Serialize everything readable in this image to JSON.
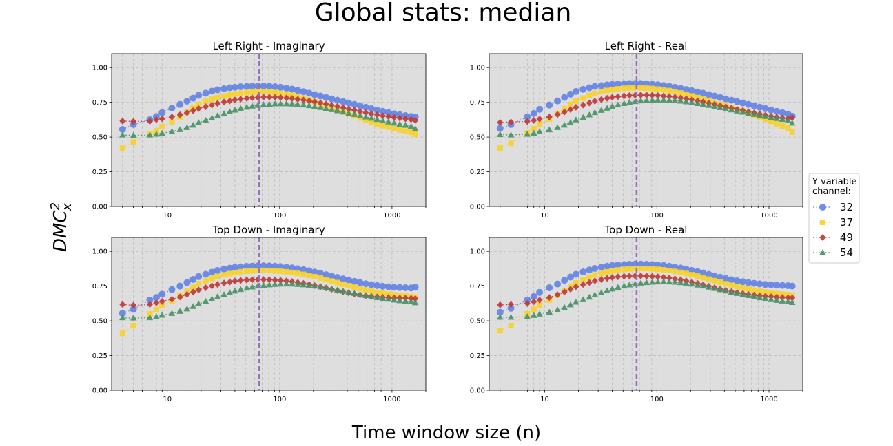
{
  "chart_data": {
    "type": "scatter",
    "title": "Global stats: median",
    "xlabel": "Time window size (n)",
    "ylabel": "DMC",
    "ylabel_sup": "2",
    "ylabel_sub": "x",
    "xscale": "log",
    "xlim": [
      3.2,
      2000
    ],
    "ylim": [
      0,
      1.1
    ],
    "xticks": [
      10,
      100,
      1000
    ],
    "xtick_labels": [
      "10",
      "100",
      "1000"
    ],
    "yticks": [
      0,
      0.25,
      0.5,
      0.75,
      1.0
    ],
    "ytick_labels": [
      "0.00",
      "0.25",
      "0.50",
      "0.75",
      "1.00"
    ],
    "grid": true,
    "vline_x": 66,
    "vline_color": "#8f6fb5",
    "legend": {
      "title_lines": [
        "Y variable",
        "channel:"
      ],
      "placement": "right",
      "entries": [
        "32",
        "37",
        "49",
        "54"
      ]
    },
    "series_styles": [
      {
        "name": "32",
        "color": "#6484e3",
        "marker": "circle"
      },
      {
        "name": "37",
        "color": "#f7d02c",
        "marker": "square"
      },
      {
        "name": "49",
        "color": "#bf3b3b",
        "marker": "diamond"
      },
      {
        "name": "54",
        "color": "#4a9168",
        "marker": "triangle"
      }
    ],
    "x": [
      4,
      5,
      7,
      8,
      9,
      11,
      13,
      15,
      17,
      19,
      22,
      25,
      28,
      32,
      36,
      40,
      45,
      51,
      57,
      64,
      72,
      81,
      91,
      102,
      115,
      129,
      145,
      163,
      183,
      205,
      231,
      259,
      291,
      327,
      367,
      412,
      463,
      520,
      584,
      656,
      737,
      828,
      930,
      1044,
      1173,
      1317,
      1479,
      1610
    ],
    "subplots": [
      {
        "title": "Left Right - Imaginary",
        "series": [
          {
            "name": "32",
            "values": [
              0.555,
              0.59,
              0.625,
              0.648,
              0.676,
              0.708,
              0.735,
              0.758,
              0.78,
              0.8,
              0.816,
              0.83,
              0.84,
              0.848,
              0.855,
              0.858,
              0.862,
              0.864,
              0.866,
              0.867,
              0.867,
              0.866,
              0.862,
              0.858,
              0.852,
              0.845,
              0.836,
              0.826,
              0.816,
              0.805,
              0.795,
              0.785,
              0.775,
              0.765,
              0.755,
              0.745,
              0.735,
              0.725,
              0.715,
              0.704,
              0.694,
              0.685,
              0.676,
              0.667,
              0.66,
              0.654,
              0.648,
              0.645
            ]
          },
          {
            "name": "37",
            "values": [
              0.42,
              0.465,
              0.52,
              0.545,
              0.575,
              0.61,
              0.645,
              0.678,
              0.71,
              0.735,
              0.757,
              0.772,
              0.785,
              0.795,
              0.804,
              0.81,
              0.816,
              0.82,
              0.823,
              0.825,
              0.826,
              0.824,
              0.82,
              0.815,
              0.808,
              0.8,
              0.79,
              0.78,
              0.767,
              0.754,
              0.74,
              0.726,
              0.712,
              0.697,
              0.682,
              0.667,
              0.652,
              0.637,
              0.622,
              0.607,
              0.594,
              0.582,
              0.571,
              0.561,
              0.551,
              0.543,
              0.535,
              0.52
            ]
          },
          {
            "name": "49",
            "values": [
              0.615,
              0.612,
              0.614,
              0.625,
              0.632,
              0.645,
              0.66,
              0.675,
              0.69,
              0.705,
              0.718,
              0.73,
              0.742,
              0.752,
              0.76,
              0.767,
              0.773,
              0.778,
              0.782,
              0.785,
              0.787,
              0.787,
              0.786,
              0.784,
              0.781,
              0.777,
              0.772,
              0.766,
              0.76,
              0.753,
              0.745,
              0.737,
              0.729,
              0.72,
              0.711,
              0.702,
              0.693,
              0.684,
              0.675,
              0.667,
              0.66,
              0.653,
              0.647,
              0.641,
              0.636,
              0.631,
              0.627,
              0.62
            ]
          },
          {
            "name": "54",
            "values": [
              0.515,
              0.512,
              0.515,
              0.52,
              0.528,
              0.54,
              0.553,
              0.568,
              0.585,
              0.603,
              0.62,
              0.637,
              0.653,
              0.668,
              0.682,
              0.694,
              0.705,
              0.714,
              0.722,
              0.728,
              0.733,
              0.736,
              0.738,
              0.739,
              0.739,
              0.737,
              0.734,
              0.73,
              0.725,
              0.719,
              0.712,
              0.705,
              0.697,
              0.689,
              0.68,
              0.671,
              0.662,
              0.653,
              0.644,
              0.635,
              0.626,
              0.617,
              0.608,
              0.6,
              0.592,
              0.584,
              0.576,
              0.56
            ]
          }
        ]
      },
      {
        "title": "Left Right - Real",
        "series": [
          {
            "name": "32",
            "values": [
              0.562,
              0.59,
              0.645,
              0.67,
              0.7,
              0.73,
              0.76,
              0.785,
              0.808,
              0.828,
              0.843,
              0.855,
              0.864,
              0.87,
              0.875,
              0.879,
              0.882,
              0.884,
              0.885,
              0.885,
              0.885,
              0.883,
              0.88,
              0.876,
              0.871,
              0.865,
              0.858,
              0.85,
              0.842,
              0.833,
              0.824,
              0.815,
              0.805,
              0.795,
              0.785,
              0.775,
              0.765,
              0.755,
              0.745,
              0.735,
              0.725,
              0.715,
              0.705,
              0.695,
              0.685,
              0.675,
              0.665,
              0.65
            ]
          },
          {
            "name": "37",
            "values": [
              0.42,
              0.455,
              0.53,
              0.56,
              0.595,
              0.63,
              0.67,
              0.705,
              0.735,
              0.76,
              0.78,
              0.8,
              0.815,
              0.827,
              0.835,
              0.842,
              0.847,
              0.851,
              0.853,
              0.854,
              0.854,
              0.852,
              0.849,
              0.845,
              0.84,
              0.834,
              0.826,
              0.817,
              0.807,
              0.796,
              0.784,
              0.772,
              0.76,
              0.748,
              0.736,
              0.724,
              0.712,
              0.7,
              0.687,
              0.673,
              0.658,
              0.643,
              0.628,
              0.612,
              0.596,
              0.58,
              0.565,
              0.535
            ]
          },
          {
            "name": "49",
            "values": [
              0.605,
              0.608,
              0.612,
              0.62,
              0.63,
              0.645,
              0.662,
              0.68,
              0.698,
              0.714,
              0.73,
              0.745,
              0.758,
              0.77,
              0.779,
              0.786,
              0.791,
              0.796,
              0.799,
              0.801,
              0.802,
              0.802,
              0.801,
              0.799,
              0.796,
              0.792,
              0.787,
              0.781,
              0.775,
              0.768,
              0.76,
              0.752,
              0.744,
              0.735,
              0.726,
              0.717,
              0.708,
              0.699,
              0.69,
              0.681,
              0.673,
              0.665,
              0.657,
              0.65,
              0.643,
              0.637,
              0.631,
              0.64
            ]
          },
          {
            "name": "54",
            "values": [
              0.518,
              0.515,
              0.52,
              0.528,
              0.538,
              0.552,
              0.568,
              0.585,
              0.604,
              0.623,
              0.641,
              0.659,
              0.676,
              0.692,
              0.707,
              0.72,
              0.731,
              0.741,
              0.749,
              0.755,
              0.76,
              0.763,
              0.765,
              0.766,
              0.766,
              0.765,
              0.762,
              0.758,
              0.753,
              0.747,
              0.741,
              0.734,
              0.727,
              0.719,
              0.711,
              0.703,
              0.695,
              0.687,
              0.679,
              0.671,
              0.663,
              0.655,
              0.648,
              0.64,
              0.633,
              0.626,
              0.619,
              0.6
            ]
          }
        ]
      },
      {
        "title": "Top Down - Imaginary",
        "series": [
          {
            "name": "32",
            "values": [
              0.555,
              0.583,
              0.65,
              0.668,
              0.692,
              0.725,
              0.75,
              0.775,
              0.798,
              0.818,
              0.835,
              0.85,
              0.862,
              0.872,
              0.879,
              0.885,
              0.889,
              0.892,
              0.894,
              0.895,
              0.896,
              0.895,
              0.893,
              0.89,
              0.886,
              0.881,
              0.875,
              0.868,
              0.86,
              0.851,
              0.842,
              0.832,
              0.822,
              0.812,
              0.802,
              0.793,
              0.784,
              0.775,
              0.767,
              0.76,
              0.754,
              0.749,
              0.745,
              0.742,
              0.74,
              0.738,
              0.737,
              0.742
            ]
          },
          {
            "name": "37",
            "values": [
              0.41,
              0.465,
              0.55,
              0.58,
              0.61,
              0.645,
              0.68,
              0.712,
              0.742,
              0.767,
              0.788,
              0.806,
              0.82,
              0.831,
              0.84,
              0.847,
              0.853,
              0.857,
              0.86,
              0.862,
              0.863,
              0.862,
              0.86,
              0.857,
              0.853,
              0.848,
              0.842,
              0.835,
              0.827,
              0.818,
              0.808,
              0.797,
              0.786,
              0.775,
              0.764,
              0.753,
              0.742,
              0.732,
              0.722,
              0.713,
              0.705,
              0.698,
              0.692,
              0.687,
              0.682,
              0.678,
              0.675,
              0.67
            ]
          },
          {
            "name": "49",
            "values": [
              0.618,
              0.612,
              0.618,
              0.63,
              0.64,
              0.655,
              0.672,
              0.69,
              0.707,
              0.723,
              0.738,
              0.751,
              0.762,
              0.772,
              0.78,
              0.786,
              0.791,
              0.794,
              0.796,
              0.797,
              0.797,
              0.796,
              0.794,
              0.791,
              0.787,
              0.782,
              0.776,
              0.769,
              0.762,
              0.754,
              0.746,
              0.737,
              0.728,
              0.719,
              0.71,
              0.702,
              0.694,
              0.687,
              0.681,
              0.676,
              0.672,
              0.669,
              0.667,
              0.665,
              0.664,
              0.663,
              0.662,
              0.66
            ]
          },
          {
            "name": "54",
            "values": [
              0.522,
              0.52,
              0.522,
              0.53,
              0.54,
              0.553,
              0.568,
              0.585,
              0.603,
              0.622,
              0.64,
              0.657,
              0.673,
              0.688,
              0.702,
              0.714,
              0.725,
              0.735,
              0.743,
              0.75,
              0.755,
              0.759,
              0.762,
              0.764,
              0.765,
              0.764,
              0.762,
              0.759,
              0.755,
              0.75,
              0.744,
              0.737,
              0.729,
              0.721,
              0.713,
              0.705,
              0.697,
              0.689,
              0.681,
              0.674,
              0.667,
              0.661,
              0.655,
              0.65,
              0.645,
              0.641,
              0.637,
              0.63
            ]
          }
        ]
      },
      {
        "title": "Top Down - Real",
        "series": [
          {
            "name": "32",
            "values": [
              0.562,
              0.59,
              0.65,
              0.675,
              0.705,
              0.738,
              0.765,
              0.792,
              0.815,
              0.835,
              0.852,
              0.866,
              0.877,
              0.886,
              0.893,
              0.898,
              0.902,
              0.905,
              0.907,
              0.908,
              0.908,
              0.907,
              0.905,
              0.902,
              0.898,
              0.893,
              0.887,
              0.88,
              0.872,
              0.863,
              0.854,
              0.844,
              0.834,
              0.824,
              0.814,
              0.805,
              0.796,
              0.788,
              0.781,
              0.775,
              0.77,
              0.766,
              0.762,
              0.759,
              0.757,
              0.755,
              0.753,
              0.75
            ]
          },
          {
            "name": "37",
            "values": [
              0.43,
              0.465,
              0.55,
              0.582,
              0.615,
              0.65,
              0.685,
              0.718,
              0.748,
              0.774,
              0.796,
              0.815,
              0.83,
              0.842,
              0.852,
              0.86,
              0.866,
              0.871,
              0.874,
              0.876,
              0.877,
              0.876,
              0.874,
              0.871,
              0.867,
              0.862,
              0.856,
              0.849,
              0.841,
              0.832,
              0.822,
              0.811,
              0.8,
              0.789,
              0.778,
              0.767,
              0.756,
              0.746,
              0.737,
              0.728,
              0.72,
              0.713,
              0.707,
              0.701,
              0.696,
              0.692,
              0.688,
              0.685
            ]
          },
          {
            "name": "49",
            "values": [
              0.615,
              0.618,
              0.625,
              0.638,
              0.65,
              0.668,
              0.688,
              0.708,
              0.728,
              0.746,
              0.762,
              0.776,
              0.788,
              0.798,
              0.806,
              0.812,
              0.817,
              0.82,
              0.822,
              0.823,
              0.823,
              0.822,
              0.82,
              0.817,
              0.813,
              0.808,
              0.802,
              0.795,
              0.787,
              0.778,
              0.769,
              0.759,
              0.749,
              0.739,
              0.729,
              0.72,
              0.711,
              0.703,
              0.696,
              0.69,
              0.685,
              0.681,
              0.677,
              0.674,
              0.671,
              0.668,
              0.666,
              0.665
            ]
          },
          {
            "name": "54",
            "values": [
              0.525,
              0.525,
              0.53,
              0.538,
              0.548,
              0.562,
              0.578,
              0.596,
              0.615,
              0.634,
              0.652,
              0.67,
              0.687,
              0.702,
              0.716,
              0.729,
              0.74,
              0.75,
              0.758,
              0.765,
              0.771,
              0.775,
              0.778,
              0.78,
              0.781,
              0.78,
              0.778,
              0.774,
              0.77,
              0.764,
              0.757,
              0.75,
              0.742,
              0.733,
              0.724,
              0.715,
              0.706,
              0.697,
              0.689,
              0.681,
              0.673,
              0.666,
              0.659,
              0.653,
              0.647,
              0.642,
              0.637,
              0.632
            ]
          }
        ]
      }
    ]
  }
}
